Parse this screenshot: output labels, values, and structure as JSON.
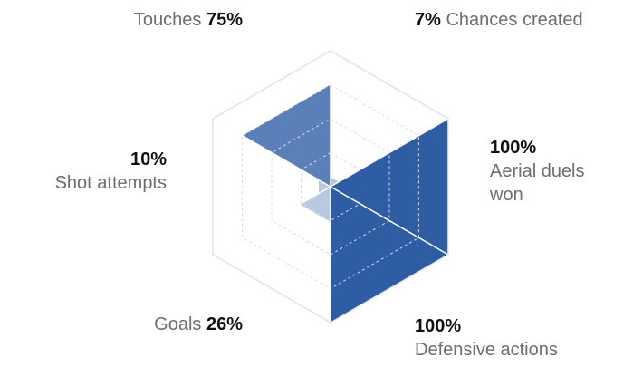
{
  "chart_data": {
    "type": "radar",
    "shape": "hexagon",
    "rings": 4,
    "ring_style": "dashed",
    "max_value": 100,
    "colors": {
      "fill_full": "#2f5da3",
      "fill_mid": "#5b7fb8",
      "fill_low": "#b9c9e2",
      "outline": "#e3e3e3",
      "grid": "#dadada",
      "label_text": "#6b6e72",
      "value_text": "#111111"
    },
    "axes": [
      {
        "key": "touches",
        "name": "Touches",
        "pct_label": "75%",
        "value": 75
      },
      {
        "key": "chances",
        "name": "Chances created",
        "pct_label": "7%",
        "value": 7
      },
      {
        "key": "aerial",
        "name_lines": [
          "Aerial duels",
          "won"
        ],
        "pct_label": "100%",
        "value": 100
      },
      {
        "key": "defensive",
        "name": "Defensive actions",
        "pct_label": "100%",
        "value": 100
      },
      {
        "key": "goals",
        "name": "Goals",
        "pct_label": "26%",
        "value": 26
      },
      {
        "key": "shots",
        "name": "Shot attempts",
        "pct_label": "10%",
        "value": 10
      }
    ]
  }
}
